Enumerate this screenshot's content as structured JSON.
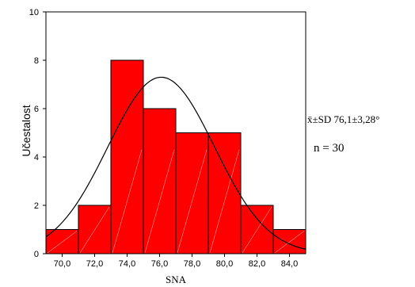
{
  "chart_data": {
    "type": "bar",
    "subtype": "histogram",
    "x_range": [
      69.0,
      85.0
    ],
    "y_range": [
      0,
      10
    ],
    "bin_width": 2.0,
    "bins": [
      {
        "start": 69.0,
        "end": 71.0,
        "count": 1
      },
      {
        "start": 71.0,
        "end": 73.0,
        "count": 2
      },
      {
        "start": 73.0,
        "end": 75.0,
        "count": 8
      },
      {
        "start": 75.0,
        "end": 77.0,
        "count": 6
      },
      {
        "start": 77.0,
        "end": 79.0,
        "count": 5
      },
      {
        "start": 79.0,
        "end": 81.0,
        "count": 5
      },
      {
        "start": 81.0,
        "end": 83.0,
        "count": 2
      },
      {
        "start": 83.0,
        "end": 85.0,
        "count": 1
      }
    ],
    "x_ticks": [
      "70,0",
      "72,0",
      "74,0",
      "76,0",
      "78,0",
      "80,0",
      "82,0",
      "84,0"
    ],
    "x_tick_values": [
      70,
      72,
      74,
      76,
      78,
      80,
      82,
      84
    ],
    "y_ticks": [
      "0",
      "2",
      "4",
      "6",
      "8",
      "10"
    ],
    "y_tick_values": [
      0,
      2,
      4,
      6,
      8,
      10
    ],
    "xlabel": "SNA",
    "ylabel": "Učestalost",
    "normal_curve": {
      "mean": 76.1,
      "sd": 3.28,
      "n": 30
    },
    "grid": false,
    "legend": "none",
    "annotations": {
      "stats": "x̄±SD 76,1±3,28°",
      "n": "n = 30"
    },
    "colors": {
      "bar_fill": "#ff0000",
      "bar_stroke": "#000000",
      "curve": "#000000"
    }
  }
}
